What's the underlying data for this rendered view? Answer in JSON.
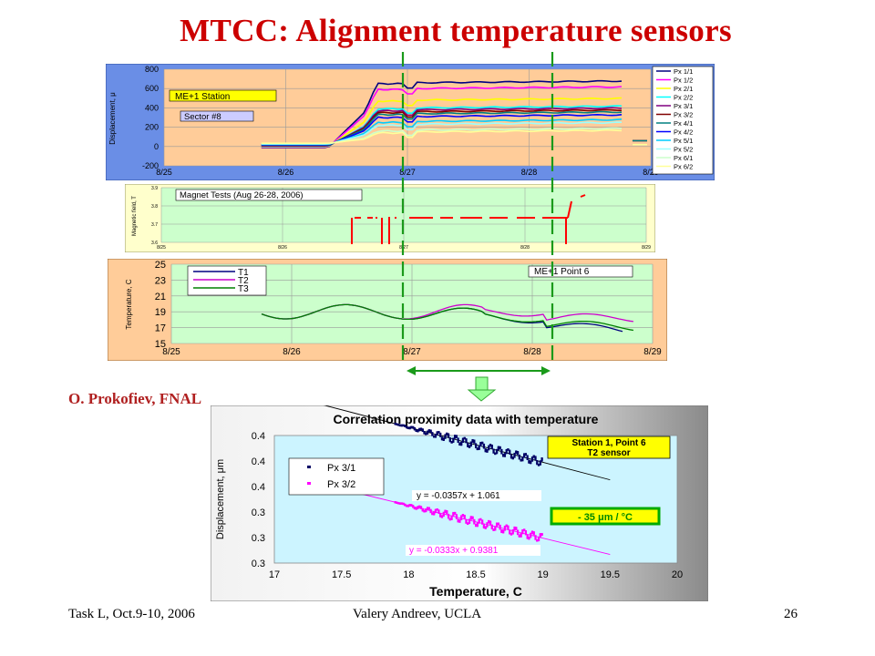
{
  "slide": {
    "title": "MTCC: Alignment temperature sensors",
    "author": "O. Prokofiev, FNAL",
    "footer_left": "Task L, Oct.9-10, 2006",
    "footer_center": "Valery Andreev, UCLA",
    "page_number": "26"
  },
  "chart_data": [
    {
      "type": "line",
      "name_box": "ME+1 Station",
      "sub_box": "Sector #8",
      "ylabel": "Displacement, μ",
      "x_ticks": [
        "8/25",
        "8/26",
        "8/27",
        "8/28",
        "8/29"
      ],
      "y_ticks": [
        "800",
        "600",
        "400",
        "200",
        "0",
        "-200"
      ],
      "ylim": [
        -200,
        800
      ],
      "legend": [
        "Px 1/1",
        "Px 1/2",
        "Px 2/1",
        "Px 2/2",
        "Px 3/1",
        "Px 3/2",
        "Px 4/1",
        "Px 4/2",
        "Px 5/1",
        "Px 5/2",
        "Px 6/1",
        "Px 6/2"
      ],
      "legend_colors": [
        "#000080",
        "#ff00ff",
        "#ffff00",
        "#00ffff",
        "#800080",
        "#800000",
        "#008080",
        "#0000ff",
        "#00ccff",
        "#99ffff",
        "#ccffcc",
        "#ffff99"
      ],
      "series_levels_after": [
        650,
        590,
        470,
        390,
        370,
        350,
        330,
        300,
        250,
        220,
        160,
        140
      ]
    },
    {
      "type": "line",
      "name_box": "Magnet Tests (Aug 26-28, 2006)",
      "ylabel": "Magnetic field, T",
      "y_ticks": [
        "3.9",
        "3.8",
        "3.7",
        "3.6"
      ],
      "x_ticks": [
        "8/25",
        "8/26",
        "8/27",
        "8/28",
        "8/29"
      ]
    },
    {
      "type": "line",
      "name_box": "ME+1 Point 6",
      "ylabel": "Temperature, C",
      "x_ticks": [
        "8/25",
        "8/26",
        "8/27",
        "8/28",
        "8/29"
      ],
      "y_ticks": [
        "25",
        "23",
        "21",
        "19",
        "17",
        "15"
      ],
      "ylim": [
        15,
        25
      ],
      "series": [
        {
          "name": "T1",
          "color": "#000080"
        },
        {
          "name": "T2",
          "color": "#cc00cc"
        },
        {
          "name": "T3",
          "color": "#008000"
        }
      ]
    },
    {
      "type": "scatter",
      "title": "Correlation proximity data with temperature",
      "xlabel": "Temperature,  C",
      "ylabel": "Displacement, μm",
      "x_ticks": [
        "17",
        "17.5",
        "18",
        "18.5",
        "19",
        "19.5",
        "20"
      ],
      "y_ticks": [
        "0.4",
        "0.4",
        "0.4",
        "0.3",
        "0.3",
        "0.3"
      ],
      "xlim": [
        17,
        20
      ],
      "box": "Station 1, Point 6\nT2 sensor",
      "slope_box": "- 35 μm / °C",
      "series": [
        {
          "name": "Px 3/1",
          "color": "#000066",
          "fit": "y = -0.0357x + 1.061",
          "slope": -0.0357,
          "intercept": 1.061,
          "x_range": [
            17.9,
            19.0
          ]
        },
        {
          "name": "Px 3/2",
          "color": "#ff00ff",
          "fit": "y = -0.0333x + 0.9381",
          "slope": -0.0333,
          "intercept": 0.9381,
          "x_range": [
            17.9,
            19.0
          ]
        }
      ]
    }
  ]
}
